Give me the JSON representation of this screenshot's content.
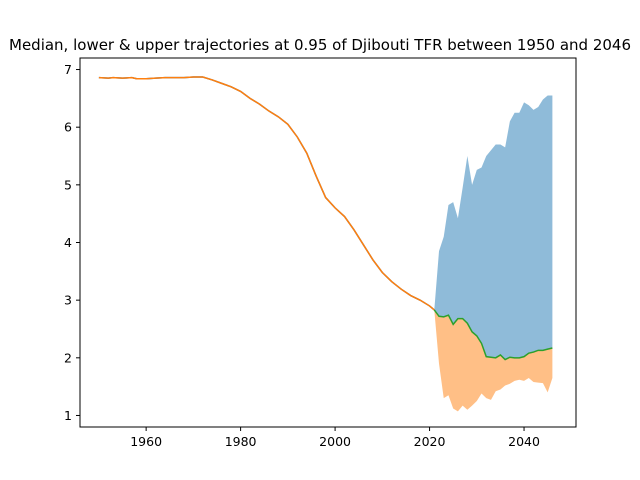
{
  "chart_data": {
    "type": "area",
    "title": "Median, lower & upper trajectories at 0.95 of Djibouti TFR between 1950 and 2046",
    "xlabel": "",
    "ylabel": "",
    "xlim": [
      1946,
      2051
    ],
    "ylim": [
      0.8,
      7.2
    ],
    "xticks": [
      1960,
      1980,
      2000,
      2020,
      2040
    ],
    "yticks": [
      1,
      2,
      3,
      4,
      5,
      6,
      7
    ],
    "grid": false,
    "colors": {
      "upper_band": "#1f77b4",
      "lower_band": "#ff7f0e",
      "median": "#2ca02c",
      "history": "#ff7f0e",
      "history_under": "#1f77b4"
    },
    "history": {
      "x": [
        1950,
        1952,
        1953,
        1955,
        1957,
        1958,
        1960,
        1962,
        1964,
        1966,
        1968,
        1970,
        1972,
        1974,
        1976,
        1978,
        1980,
        1982,
        1984,
        1986,
        1988,
        1990,
        1992,
        1994,
        1996,
        1998,
        2000,
        2002,
        2004,
        2006,
        2008,
        2010,
        2012,
        2014,
        2016,
        2018,
        2020,
        2021
      ],
      "y": [
        6.86,
        6.85,
        6.86,
        6.85,
        6.86,
        6.84,
        6.84,
        6.85,
        6.86,
        6.86,
        6.86,
        6.87,
        6.87,
        6.82,
        6.76,
        6.7,
        6.62,
        6.5,
        6.4,
        6.28,
        6.18,
        6.05,
        5.83,
        5.55,
        5.15,
        4.78,
        4.6,
        4.45,
        4.22,
        3.96,
        3.7,
        3.48,
        3.32,
        3.19,
        3.08,
        3.0,
        2.9,
        2.83
      ]
    },
    "projection": {
      "x": [
        2021,
        2022,
        2023,
        2024,
        2025,
        2026,
        2027,
        2028,
        2029,
        2030,
        2031,
        2032,
        2033,
        2034,
        2035,
        2036,
        2037,
        2038,
        2039,
        2040,
        2041,
        2042,
        2043,
        2044,
        2045,
        2046
      ],
      "median": [
        2.83,
        2.72,
        2.71,
        2.74,
        2.58,
        2.68,
        2.68,
        2.6,
        2.45,
        2.38,
        2.25,
        2.02,
        2.01,
        2.0,
        2.05,
        1.97,
        2.01,
        2.0,
        2.0,
        2.02,
        2.08,
        2.1,
        2.13,
        2.13,
        2.15,
        2.17
      ],
      "upper": [
        2.83,
        3.85,
        4.1,
        4.65,
        4.7,
        4.42,
        4.95,
        5.5,
        5.0,
        5.26,
        5.3,
        5.5,
        5.6,
        5.7,
        5.7,
        5.65,
        6.1,
        6.25,
        6.25,
        6.43,
        6.38,
        6.3,
        6.35,
        6.48,
        6.55,
        6.55
      ],
      "lower": [
        2.83,
        1.9,
        1.3,
        1.35,
        1.12,
        1.07,
        1.17,
        1.1,
        1.17,
        1.25,
        1.38,
        1.3,
        1.27,
        1.42,
        1.45,
        1.52,
        1.55,
        1.6,
        1.62,
        1.6,
        1.65,
        1.58,
        1.57,
        1.56,
        1.4,
        1.65
      ]
    }
  }
}
